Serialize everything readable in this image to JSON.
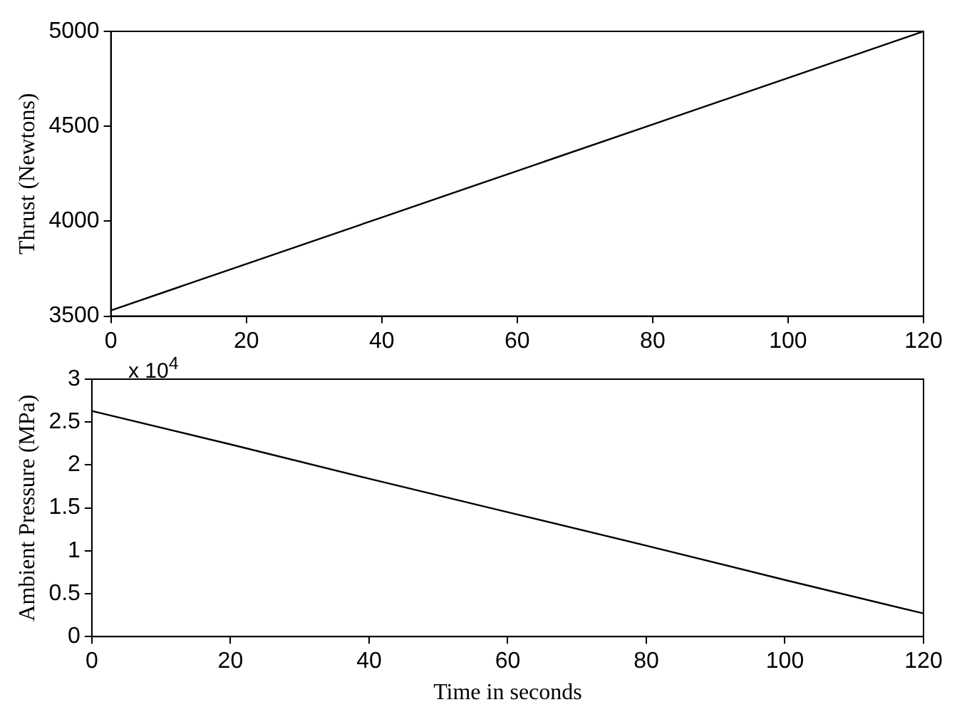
{
  "chart_data": [
    {
      "type": "line",
      "ylabel": "Thrust (Newtons)",
      "x": [
        0,
        20,
        40,
        60,
        80,
        100,
        120
      ],
      "xlim": [
        0,
        120
      ],
      "xticks": [
        0,
        20,
        40,
        60,
        80,
        100,
        120
      ],
      "ylim": [
        3500,
        5000
      ],
      "yticks": [
        3500,
        4000,
        4500,
        5000
      ],
      "grid": false,
      "legend": false,
      "marker": "none",
      "line_style": "solid",
      "series": [
        {
          "color": "#000000",
          "values": [
            3530,
            3775,
            4020,
            4265,
            4510,
            4755,
            5000
          ]
        }
      ]
    },
    {
      "type": "line",
      "xlabel": "Time in seconds",
      "ylabel": "Ambient Pressure (MPa)",
      "annotations": [
        "x 10$^{4}$"
      ],
      "x": [
        0,
        20,
        40,
        60,
        80,
        100,
        120
      ],
      "xlim": [
        0,
        120
      ],
      "xticks": [
        0,
        20,
        40,
        60,
        80,
        100,
        120
      ],
      "ylim": [
        0,
        3
      ],
      "yticks": [
        0,
        0.5,
        1,
        1.5,
        2,
        2.5,
        3
      ],
      "grid": false,
      "legend": false,
      "marker": "none",
      "line_style": "solid",
      "series": [
        {
          "color": "#000000",
          "values": [
            2.63,
            2.24,
            1.84,
            1.45,
            1.06,
            0.66,
            0.27
          ]
        }
      ]
    }
  ]
}
